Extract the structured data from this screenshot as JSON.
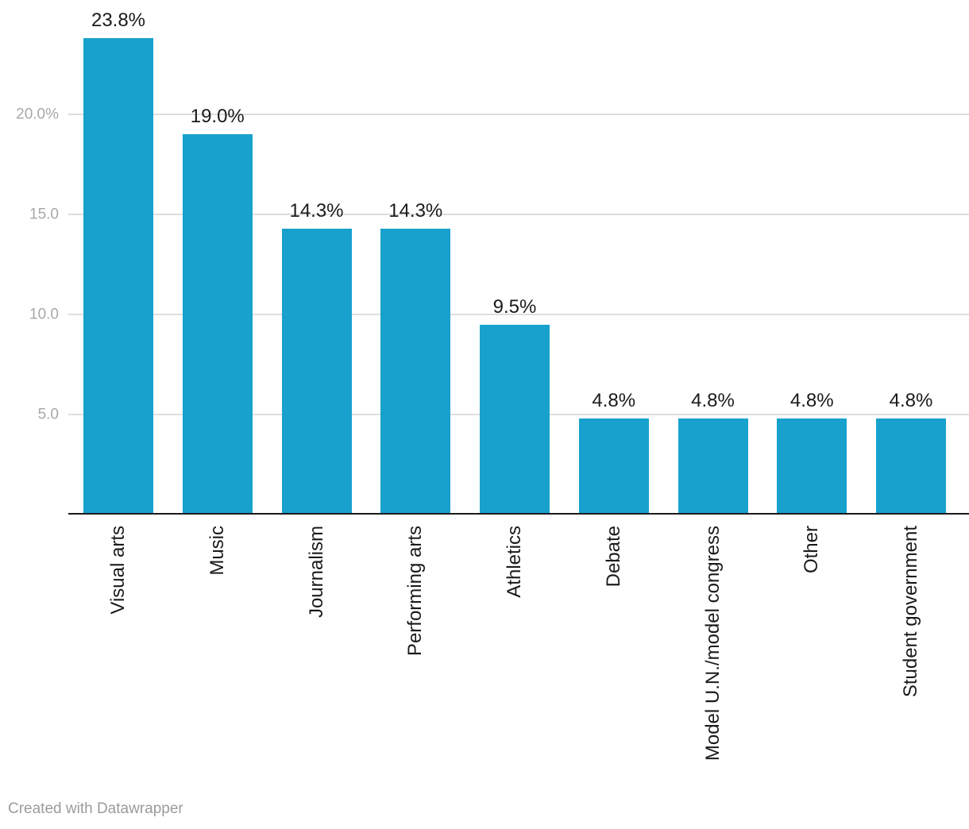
{
  "chart_data": {
    "type": "bar",
    "categories": [
      "Visual arts",
      "Music",
      "Journalism",
      "Performing arts",
      "Athletics",
      "Debate",
      "Model U.N./model congress",
      "Other",
      "Student government"
    ],
    "values": [
      23.8,
      19.0,
      14.3,
      14.3,
      9.5,
      4.8,
      4.8,
      4.8,
      4.8
    ],
    "value_labels": [
      "23.8%",
      "19.0%",
      "14.3%",
      "14.3%",
      "9.5%",
      "4.8%",
      "4.8%",
      "4.8%",
      "4.8%"
    ],
    "y_axis": {
      "ticks": [
        {
          "value": 5,
          "label": "5.0"
        },
        {
          "value": 10,
          "label": "10.0"
        },
        {
          "value": 15,
          "label": "15.0"
        },
        {
          "value": 20,
          "label": "20.0%"
        }
      ]
    },
    "ylim": [
      0,
      25.7
    ],
    "grid": true,
    "legend": "none",
    "bar_color": "#18a1cd"
  },
  "colors": {
    "bar": "#18a1cd",
    "gridline": "#dedede",
    "axis_line": "#1a1a1a",
    "tick_label": "#a8a8a8",
    "value_label": "#1a1a1a",
    "category_label": "#1a1a1a",
    "credit": "#9b9b9b",
    "background": "#ffffff"
  },
  "footer": {
    "credit_text": "Created with Datawrapper"
  }
}
